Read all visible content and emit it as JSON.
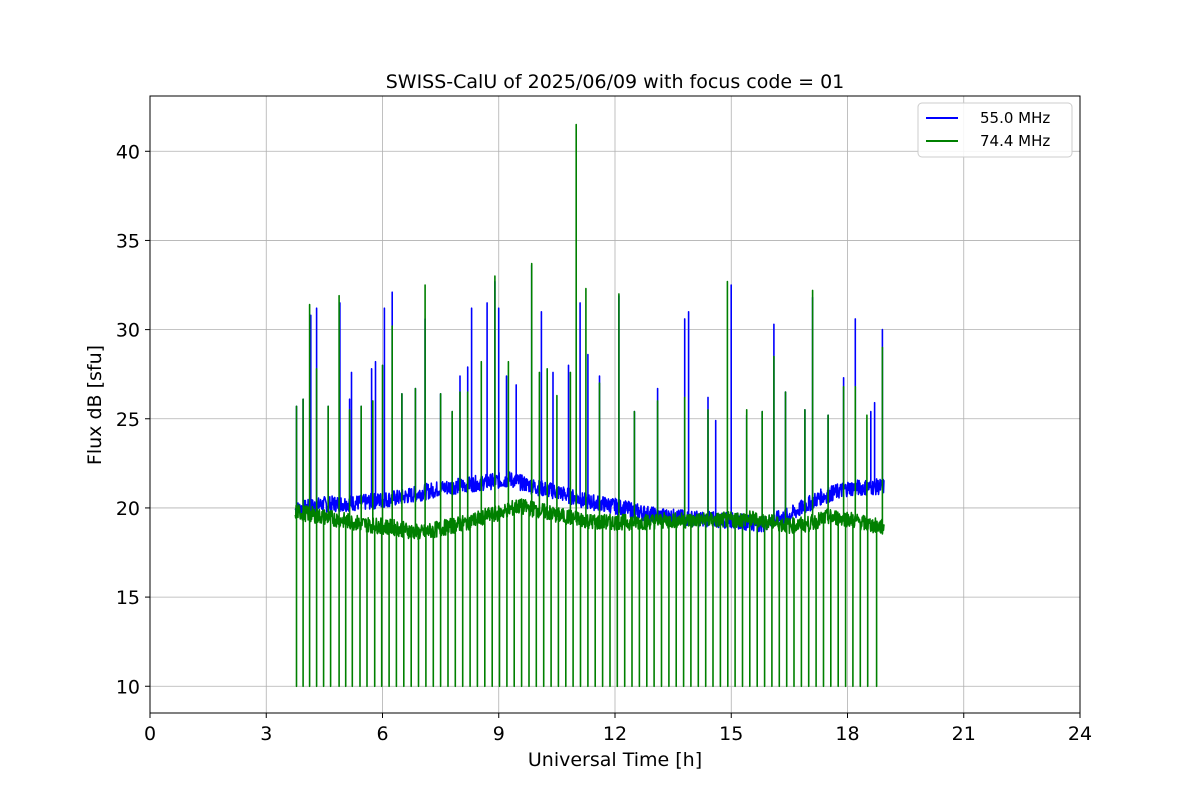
{
  "chart_data": {
    "type": "line",
    "title": "SWISS-CalU of 2025/06/09 with focus code = 01",
    "xlabel": "Universal Time [h]",
    "ylabel": "Flux dB [sfu]",
    "xlim": [
      0,
      24
    ],
    "ylim": [
      8.5,
      43.1
    ],
    "xticks": [
      0,
      3,
      6,
      9,
      12,
      15,
      18,
      21,
      24
    ],
    "yticks": [
      10,
      15,
      20,
      25,
      30,
      35,
      40
    ],
    "grid": true,
    "legend_position": "top-right",
    "series": [
      {
        "name": "55.0 MHz",
        "color": "#0000ff",
        "baseline": [
          [
            3.75,
            19.9
          ],
          [
            4.5,
            20.2
          ],
          [
            5.5,
            20.3
          ],
          [
            6.5,
            20.6
          ],
          [
            7.5,
            21.1
          ],
          [
            8.5,
            21.4
          ],
          [
            9.3,
            21.6
          ],
          [
            9.9,
            21.2
          ],
          [
            10.5,
            20.9
          ],
          [
            11.2,
            20.4
          ],
          [
            12.0,
            20.1
          ],
          [
            13.0,
            19.6
          ],
          [
            14.0,
            19.4
          ],
          [
            15.0,
            19.3
          ],
          [
            15.8,
            19.1
          ],
          [
            16.5,
            19.6
          ],
          [
            17.3,
            20.6
          ],
          [
            18.0,
            21.1
          ],
          [
            18.95,
            21.2
          ]
        ],
        "peaks": [
          [
            3.78,
            25.7
          ],
          [
            3.95,
            26.1
          ],
          [
            4.15,
            30.8
          ],
          [
            4.3,
            31.2
          ],
          [
            4.6,
            25.7
          ],
          [
            4.9,
            31.5
          ],
          [
            5.15,
            26.1
          ],
          [
            5.2,
            27.6
          ],
          [
            5.45,
            25.7
          ],
          [
            5.72,
            27.8
          ],
          [
            5.82,
            28.2
          ],
          [
            6.05,
            31.2
          ],
          [
            6.25,
            32.1
          ],
          [
            6.5,
            26.4
          ],
          [
            6.85,
            26.7
          ],
          [
            7.1,
            30.6
          ],
          [
            7.5,
            26.4
          ],
          [
            7.8,
            25.4
          ],
          [
            8.0,
            27.4
          ],
          [
            8.2,
            27.9
          ],
          [
            8.3,
            31.2
          ],
          [
            8.7,
            31.5
          ],
          [
            8.9,
            32.7
          ],
          [
            9.0,
            31.2
          ],
          [
            9.2,
            27.4
          ],
          [
            9.45,
            26.9
          ],
          [
            9.85,
            33.6
          ],
          [
            10.1,
            31.0
          ],
          [
            10.4,
            27.6
          ],
          [
            10.8,
            28.0
          ],
          [
            11.1,
            31.5
          ],
          [
            11.3,
            28.6
          ],
          [
            11.6,
            27.4
          ],
          [
            12.1,
            31.9
          ],
          [
            12.5,
            25.4
          ],
          [
            13.1,
            26.7
          ],
          [
            13.8,
            30.6
          ],
          [
            13.9,
            31.0
          ],
          [
            14.4,
            26.2
          ],
          [
            14.6,
            24.9
          ],
          [
            15.0,
            32.5
          ],
          [
            15.4,
            25.2
          ],
          [
            15.8,
            25.4
          ],
          [
            16.1,
            30.3
          ],
          [
            16.4,
            26.5
          ],
          [
            16.9,
            25.5
          ],
          [
            17.1,
            31.8
          ],
          [
            17.5,
            25.2
          ],
          [
            17.9,
            27.3
          ],
          [
            18.2,
            30.6
          ],
          [
            18.6,
            25.4
          ],
          [
            18.7,
            25.9
          ],
          [
            18.9,
            30.0
          ]
        ]
      },
      {
        "name": "74.4 MHz",
        "color": "#008000",
        "baseline": [
          [
            3.75,
            19.8
          ],
          [
            4.5,
            19.5
          ],
          [
            5.5,
            19.1
          ],
          [
            6.3,
            18.9
          ],
          [
            7.0,
            18.6
          ],
          [
            7.6,
            18.9
          ],
          [
            8.2,
            19.2
          ],
          [
            8.6,
            19.5
          ],
          [
            9.0,
            19.7
          ],
          [
            9.5,
            20.1
          ],
          [
            10.0,
            19.9
          ],
          [
            10.5,
            19.6
          ],
          [
            11.0,
            19.4
          ],
          [
            11.5,
            19.2
          ],
          [
            12.5,
            19.2
          ],
          [
            13.5,
            19.3
          ],
          [
            14.5,
            19.3
          ],
          [
            15.5,
            19.4
          ],
          [
            16.0,
            19.2
          ],
          [
            16.5,
            19.0
          ],
          [
            17.0,
            19.1
          ],
          [
            17.5,
            19.5
          ],
          [
            18.0,
            19.4
          ],
          [
            18.5,
            19.1
          ],
          [
            18.95,
            18.9
          ]
        ],
        "peaks": [
          [
            3.78,
            25.7
          ],
          [
            3.95,
            26.1
          ],
          [
            4.12,
            31.4
          ],
          [
            4.3,
            27.8
          ],
          [
            4.6,
            25.7
          ],
          [
            4.88,
            31.9
          ],
          [
            5.15,
            25.5
          ],
          [
            5.45,
            25.7
          ],
          [
            5.75,
            26.0
          ],
          [
            6.0,
            28.0
          ],
          [
            6.25,
            30.2
          ],
          [
            6.5,
            26.4
          ],
          [
            6.85,
            26.7
          ],
          [
            7.1,
            32.5
          ],
          [
            7.5,
            26.4
          ],
          [
            7.8,
            25.4
          ],
          [
            8.0,
            26.5
          ],
          [
            8.2,
            26.5
          ],
          [
            8.55,
            28.2
          ],
          [
            8.9,
            33.0
          ],
          [
            9.25,
            28.2
          ],
          [
            9.85,
            33.7
          ],
          [
            10.05,
            27.6
          ],
          [
            10.25,
            27.8
          ],
          [
            10.5,
            26.3
          ],
          [
            10.85,
            27.6
          ],
          [
            11.0,
            41.5
          ],
          [
            11.25,
            32.3
          ],
          [
            11.6,
            27.0
          ],
          [
            12.1,
            32.0
          ],
          [
            12.5,
            25.4
          ],
          [
            13.1,
            26.0
          ],
          [
            13.8,
            26.2
          ],
          [
            14.4,
            25.5
          ],
          [
            14.9,
            32.7
          ],
          [
            15.4,
            25.5
          ],
          [
            15.8,
            25.4
          ],
          [
            16.1,
            28.5
          ],
          [
            16.4,
            26.5
          ],
          [
            16.9,
            25.5
          ],
          [
            17.1,
            32.2
          ],
          [
            17.5,
            25.2
          ],
          [
            17.9,
            26.8
          ],
          [
            18.2,
            26.8
          ],
          [
            18.5,
            25.2
          ],
          [
            18.9,
            29.0
          ]
        ],
        "dropouts": [
          3.78,
          3.95,
          4.12,
          4.3,
          4.48,
          4.66,
          4.88,
          5.05,
          5.22,
          5.42,
          5.6,
          5.8,
          5.98,
          6.17,
          6.36,
          6.55,
          6.74,
          6.93,
          7.12,
          7.31,
          7.5,
          7.69,
          7.88,
          8.07,
          8.26,
          8.45,
          8.64,
          8.83,
          9.02,
          9.21,
          9.4,
          9.59,
          9.78,
          9.97,
          10.16,
          10.35,
          10.54,
          10.73,
          10.92,
          11.11,
          11.3,
          11.49,
          11.68,
          11.87,
          12.06,
          12.25,
          12.44,
          12.63,
          12.82,
          13.01,
          13.2,
          13.39,
          13.58,
          13.77,
          13.96,
          14.15,
          14.34,
          14.53,
          14.72,
          14.91,
          15.1,
          15.29,
          15.48,
          15.67,
          15.86,
          16.05,
          16.24,
          16.43,
          16.62,
          16.81,
          17.0,
          17.19,
          17.38,
          17.57,
          17.76,
          17.95,
          18.14,
          18.33,
          18.52,
          18.75
        ],
        "dropout_min": 10
      }
    ]
  }
}
